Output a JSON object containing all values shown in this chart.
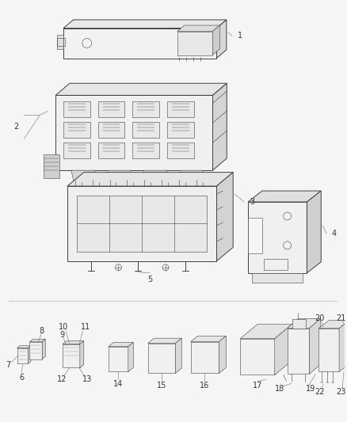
{
  "bg_color": "#f5f5f5",
  "line_color": "#404040",
  "label_color": "#333333",
  "leader_color": "#888888",
  "figsize": [
    4.38,
    5.33
  ],
  "dpi": 100,
  "lw_main": 0.7,
  "lw_detail": 0.4,
  "fs_label": 7.0
}
